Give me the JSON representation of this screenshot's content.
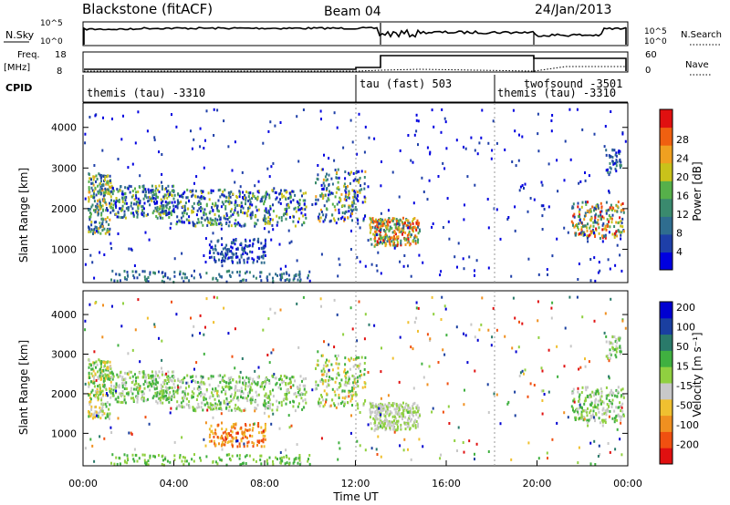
{
  "header": {
    "station": "Blackstone (fitACF)",
    "beam": "Beam 04",
    "date": "24/Jan/2013"
  },
  "strip_labels": {
    "nsky": "N.Sky",
    "nsky_ticks": [
      "10^5",
      "10^0"
    ],
    "nsearch": "N.Search",
    "nsearch_ticks": [
      "10^5",
      "10^0"
    ],
    "freq": "Freq.",
    "freq_unit": "[MHz]",
    "freq_ticks": [
      "18",
      "8"
    ],
    "nave": "Nave",
    "nave_ticks": [
      "60",
      "0"
    ],
    "cpid": "CPID"
  },
  "cpid_segments": [
    {
      "label": "themis (tau)  -3310",
      "start_hr": 0.0
    },
    {
      "label": "tau (fast) 503",
      "start_hr": 12.0
    },
    {
      "label": "twofsound -3501",
      "start_hr": 18.0
    },
    {
      "label": "themis (tau)  -3310",
      "start_hr": 18.0
    }
  ],
  "colors": {
    "power": [
      "#0000e0",
      "#1e3fa8",
      "#2f6d8f",
      "#3a8a6e",
      "#56b04a",
      "#c9c21a",
      "#f0a020",
      "#f06010",
      "#e01010"
    ],
    "velocity": [
      "#e01010",
      "#f05010",
      "#f09020",
      "#f0c030",
      "#c8c8c8",
      "#90d040",
      "#40b040",
      "#2a7a6a",
      "#1a3fa0",
      "#0000d0"
    ]
  },
  "chart_data": [
    {
      "type": "heatmap",
      "name": "Power",
      "ylabel": "Slant Range [km]",
      "xlabel": "Time UT",
      "x_range_hr": [
        0,
        24
      ],
      "ylim": [
        180,
        4600
      ],
      "yticks": [
        1000,
        2000,
        3000,
        4000
      ],
      "xtick_labels": [
        "00:00",
        "04:00",
        "08:00",
        "12:00",
        "16:00",
        "20:00",
        "00:00"
      ],
      "colorbar_label": "Power [dB]",
      "colorbar_ticks": [
        "4",
        "8",
        "12",
        "16",
        "20",
        "24",
        "28"
      ],
      "colorbar_range": [
        0,
        30
      ]
    },
    {
      "type": "heatmap",
      "name": "Velocity",
      "ylabel": "Slant Range [km]",
      "xlabel": "Time UT",
      "x_range_hr": [
        0,
        24
      ],
      "ylim": [
        180,
        4600
      ],
      "yticks": [
        1000,
        2000,
        3000,
        4000
      ],
      "xtick_labels": [
        "00:00",
        "04:00",
        "08:00",
        "12:00",
        "16:00",
        "20:00",
        "00:00"
      ],
      "colorbar_label": "Velocity [m s⁻¹]",
      "colorbar_ticks": [
        "200",
        "100",
        "50",
        "15",
        "-15",
        "-50",
        "-100",
        "-200"
      ]
    }
  ],
  "xlabel": "Time UT"
}
